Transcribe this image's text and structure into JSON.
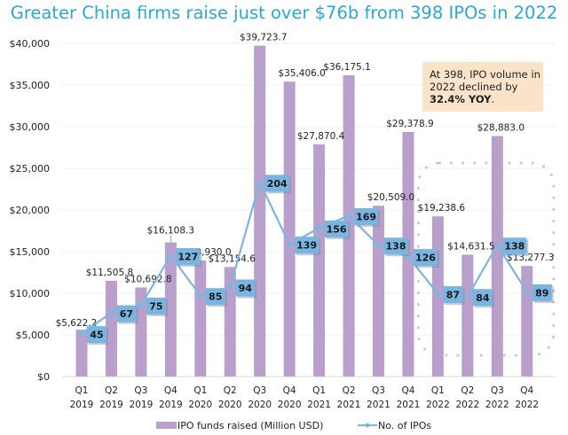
{
  "chart_data": {
    "type": "bar",
    "title": "Greater China firms raise just over $76b from 398 IPOs in 2022",
    "xlabel": "",
    "ylabel": "",
    "ylim": [
      0,
      40000
    ],
    "yticks": [
      0,
      5000,
      10000,
      15000,
      20000,
      25000,
      30000,
      35000,
      40000
    ],
    "ytick_labels": [
      "$0",
      "$5,000",
      "$10,000",
      "$15,000",
      "$20,000",
      "$25,000",
      "$30,000",
      "$35,000",
      "$40,000"
    ],
    "grid": true,
    "categories": [
      [
        "Q1",
        "2019"
      ],
      [
        "Q2",
        "2019"
      ],
      [
        "Q3",
        "2019"
      ],
      [
        "Q4",
        "2019"
      ],
      [
        "Q1",
        "2020"
      ],
      [
        "Q2",
        "2020"
      ],
      [
        "Q3",
        "2020"
      ],
      [
        "Q4",
        "2020"
      ],
      [
        "Q1",
        "2021"
      ],
      [
        "Q2",
        "2021"
      ],
      [
        "Q3",
        "2021"
      ],
      [
        "Q4",
        "2021"
      ],
      [
        "Q1",
        "2022"
      ],
      [
        "Q2",
        "2022"
      ],
      [
        "Q3",
        "2022"
      ],
      [
        "Q4",
        "2022"
      ]
    ],
    "series": [
      {
        "name": "IPO funds raised (Million USD)",
        "type": "bar",
        "color": "#b9a0cc",
        "values": [
          5622.2,
          11505.8,
          10692.8,
          16108.3,
          13930.0,
          13154.6,
          39723.7,
          35406.0,
          27870.4,
          36175.1,
          20509.0,
          29378.9,
          19238.6,
          14631.5,
          28883.0,
          13277.3
        ],
        "labels": [
          "$5,622.2",
          "$11,505.8",
          "$10,692.8",
          "$16,108.3",
          "$13,930.0",
          "$13,154.6",
          "$39,723.7",
          "$35,406.0",
          "$27,870.4",
          "$36,175.1",
          "$20,509.0",
          "$29,378.9",
          "$19,238.6",
          "$14,631.5",
          "$28,883.0",
          "$13,277.3"
        ]
      },
      {
        "name": "No. of IPOs",
        "type": "line",
        "color": "#7db6de",
        "label_box_color": "#7ab4e0",
        "values": [
          45,
          67,
          75,
          127,
          85,
          94,
          204,
          139,
          156,
          169,
          138,
          126,
          87,
          84,
          138,
          89
        ],
        "labels": [
          "45",
          "67",
          "75",
          "127",
          "85",
          "94",
          "204",
          "139",
          "156",
          "169",
          "138",
          "126",
          "87",
          "84",
          "138",
          "89"
        ],
        "ylim": [
          0,
          350
        ]
      }
    ],
    "legend": {
      "placement": "bottom",
      "entries": [
        "IPO funds raised (Million USD)",
        "No. of IPOs"
      ]
    },
    "annotation": {
      "line1": "At 398, IPO volume in",
      "line2": "2022 declined by",
      "line3_bold": "32.4% YOY",
      "line3_tail": ".",
      "background": "#fbe3c9",
      "placement": "top-right"
    },
    "highlight": {
      "description": "dotted rounded box around 2022 quarters",
      "categories": [
        "Q1 2022",
        "Q2 2022",
        "Q3 2022",
        "Q4 2022"
      ],
      "color": "#c8c8c8"
    }
  }
}
